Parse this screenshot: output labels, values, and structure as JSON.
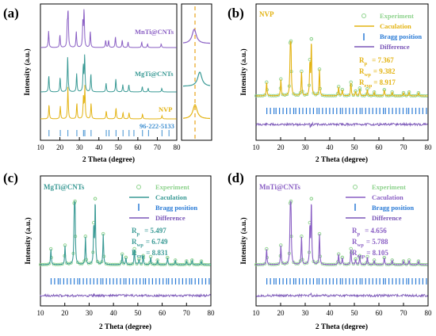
{
  "panels": {
    "a": {
      "label": "(a)"
    },
    "b": {
      "label": "(b)"
    },
    "c": {
      "label": "(c)"
    },
    "d": {
      "label": "(d)"
    }
  },
  "colors": {
    "purple": "#8a5fc4",
    "teal": "#3a9a95",
    "gold": "#e3b312",
    "green_marker": "#8fd38e",
    "bragg_blue": "#2a7bd6",
    "diff_purple": "#7b57b8",
    "ref_blue": "#3f8fd0",
    "dash_orange": "#e8a51c"
  },
  "chart_data": [
    {
      "panel": "a",
      "type": "line",
      "xlabel": "2 Theta (degree)",
      "ylabel": "Intensity (a.u.)",
      "x_ticks": [
        10,
        20,
        30,
        40,
        50,
        60,
        70,
        80
      ],
      "series": [
        {
          "name": "MnTi@CNTs",
          "color": "#8a5fc4",
          "peaks": [
            [
              14.2,
              0.45
            ],
            [
              20.0,
              0.35
            ],
            [
              23.8,
              0.55
            ],
            [
              24.2,
              0.95
            ],
            [
              28.4,
              0.45
            ],
            [
              31.8,
              0.7
            ],
            [
              32.4,
              1.0
            ],
            [
              35.6,
              0.45
            ],
            [
              43.5,
              0.2
            ],
            [
              45.0,
              0.2
            ],
            [
              48.5,
              0.3
            ],
            [
              52.0,
              0.2
            ],
            [
              55.0,
              0.15
            ],
            [
              62.0,
              0.15
            ],
            [
              65.0,
              0.1
            ],
            [
              72.0,
              0.1
            ]
          ]
        },
        {
          "name": "MgTi@CNTs",
          "color": "#3a9a95",
          "peaks": [
            [
              14.3,
              0.45
            ],
            [
              20.1,
              0.4
            ],
            [
              24.0,
              1.0
            ],
            [
              28.6,
              0.5
            ],
            [
              32.0,
              0.7
            ],
            [
              32.7,
              1.0
            ],
            [
              35.9,
              0.5
            ],
            [
              43.7,
              0.25
            ],
            [
              48.7,
              0.35
            ],
            [
              52.3,
              0.2
            ],
            [
              55.4,
              0.2
            ],
            [
              62.3,
              0.15
            ],
            [
              65.3,
              0.1
            ],
            [
              72.3,
              0.1
            ]
          ]
        },
        {
          "name": "NVP",
          "color": "#e3b312",
          "peaks": [
            [
              14.4,
              0.45
            ],
            [
              20.2,
              0.4
            ],
            [
              24.1,
              1.0
            ],
            [
              28.7,
              0.5
            ],
            [
              32.1,
              0.7
            ],
            [
              32.8,
              1.0
            ],
            [
              36.0,
              0.5
            ],
            [
              43.8,
              0.25
            ],
            [
              48.8,
              0.35
            ],
            [
              52.4,
              0.2
            ],
            [
              55.5,
              0.2
            ],
            [
              62.4,
              0.15
            ],
            [
              72.4,
              0.1
            ]
          ]
        }
      ],
      "reference": {
        "name": "96-222-5133",
        "positions": [
          14.4,
          20.2,
          24.1,
          28.7,
          32.1,
          32.8,
          36.0,
          43.8,
          45.2,
          48.8,
          52.4,
          55.5,
          58.0,
          62.4,
          65.5,
          72.4,
          76.0
        ]
      }
    },
    {
      "panel": "b",
      "type": "line",
      "title": "NVP",
      "xlabel": "2 Theta (degree)",
      "ylabel": "Intensity (a.u.)",
      "x_ticks": [
        10,
        20,
        30,
        40,
        50,
        60,
        70,
        80
      ],
      "legend": [
        "Experiment",
        "Caculation",
        "Bragg position",
        "Difference"
      ],
      "stats": [
        {
          "label": "R",
          "sub": "p",
          "value": "= 7.367"
        },
        {
          "label": "R",
          "sub": "wp",
          "value": "= 9.382"
        },
        {
          "label": "R",
          "sub": "exp",
          "value": "= 8.917"
        }
      ]
    },
    {
      "panel": "c",
      "type": "line",
      "title": "MgTi@CNTs",
      "xlabel": "2 Theta (degree)",
      "ylabel": "Intensity (a.u.)",
      "x_ticks": [
        10,
        20,
        30,
        40,
        50,
        60,
        70,
        80
      ],
      "legend": [
        "Experiment",
        "Caculation",
        "Bragg position",
        "Difference"
      ],
      "stats": [
        {
          "label": "R",
          "sub": "p",
          "value": "= 5.497"
        },
        {
          "label": "R",
          "sub": "wp",
          "value": "= 6.749"
        },
        {
          "label": "R",
          "sub": "exp",
          "value": "= 8.831"
        }
      ]
    },
    {
      "panel": "d",
      "type": "line",
      "title": "MnTi@CNTs",
      "xlabel": "2 Theta (degree)",
      "ylabel": "Intensity (a.u.)",
      "x_ticks": [
        10,
        20,
        30,
        40,
        50,
        60,
        70,
        80
      ],
      "legend": [
        "Experiment",
        "Caculation",
        "Bragg position",
        "Difference"
      ],
      "stats": [
        {
          "label": "R",
          "sub": "p",
          "value": "= 4.656"
        },
        {
          "label": "R",
          "sub": "wp",
          "value": "= 5.788"
        },
        {
          "label": "R",
          "sub": "exp",
          "value": "= 8.105"
        }
      ]
    }
  ]
}
